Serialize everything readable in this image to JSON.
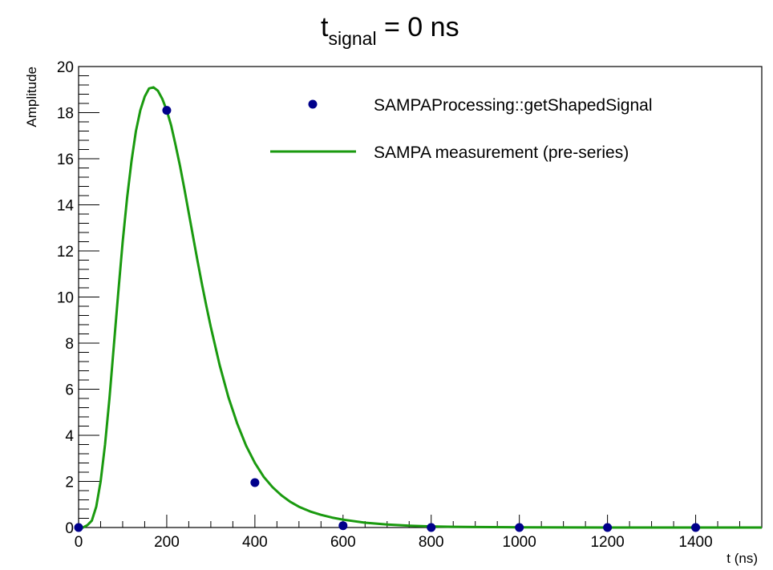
{
  "chart_data": {
    "type": "line",
    "title": {
      "main": "t",
      "subscript": "signal",
      "suffix": " = 0 ns"
    },
    "xlabel": "t (ns)",
    "ylabel": "Amplitude",
    "xlim": [
      0,
      1550
    ],
    "ylim": [
      0,
      20
    ],
    "x_ticks": [
      0,
      200,
      400,
      600,
      800,
      1000,
      1200,
      1400
    ],
    "y_ticks": [
      0,
      2,
      4,
      6,
      8,
      10,
      12,
      14,
      16,
      18,
      20
    ],
    "grid": false,
    "legend_position": "top-right",
    "series": [
      {
        "name": "SAMPAProcessing::getShapedSignal",
        "type": "scatter",
        "color": "#00008b",
        "x": [
          0,
          200,
          400,
          600,
          800,
          1000,
          1200,
          1400
        ],
        "y": [
          0,
          18.1,
          1.95,
          0.08,
          0.0,
          0.0,
          0.0,
          0.0
        ]
      },
      {
        "name": "SAMPA measurement (pre-series)",
        "type": "line",
        "color": "#1a9a0f",
        "x": [
          0,
          10,
          20,
          30,
          40,
          50,
          60,
          70,
          80,
          90,
          100,
          110,
          120,
          130,
          140,
          150,
          160,
          170,
          180,
          190,
          200,
          210,
          220,
          230,
          240,
          250,
          260,
          270,
          280,
          290,
          300,
          320,
          340,
          360,
          380,
          400,
          420,
          440,
          460,
          480,
          500,
          525,
          550,
          575,
          600,
          650,
          700,
          750,
          800,
          850,
          900,
          1000,
          1100,
          1200,
          1300,
          1400,
          1550
        ],
        "y": [
          0.0,
          0.0,
          0.1,
          0.3,
          0.9,
          2.0,
          3.6,
          5.6,
          7.9,
          10.2,
          12.4,
          14.3,
          15.9,
          17.2,
          18.1,
          18.7,
          19.05,
          19.1,
          18.95,
          18.6,
          18.1,
          17.45,
          16.6,
          15.7,
          14.7,
          13.65,
          12.6,
          11.55,
          10.55,
          9.6,
          8.7,
          7.05,
          5.65,
          4.5,
          3.55,
          2.8,
          2.2,
          1.75,
          1.4,
          1.12,
          0.9,
          0.7,
          0.55,
          0.43,
          0.34,
          0.21,
          0.13,
          0.08,
          0.05,
          0.03,
          0.02,
          0.01,
          0.005,
          0.0,
          0.0,
          0.0,
          0.0
        ]
      }
    ]
  }
}
